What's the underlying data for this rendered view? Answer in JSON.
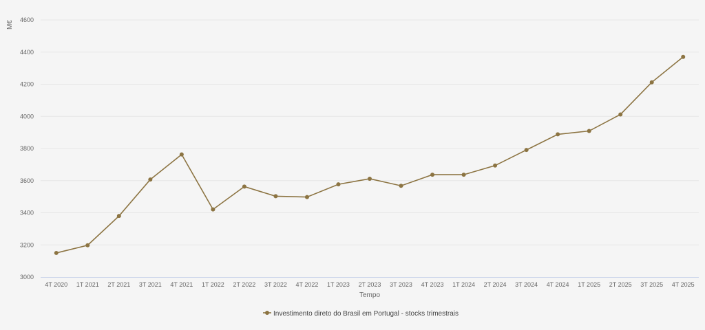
{
  "chart_data": {
    "type": "line",
    "xlabel": "Tempo",
    "ylabel": "M€",
    "ylim": [
      3000,
      4600
    ],
    "yticks": [
      3000,
      3200,
      3400,
      3600,
      3800,
      4000,
      4200,
      4400,
      4600
    ],
    "grid": true,
    "legend_position": "bottom",
    "categories": [
      "4T 2020",
      "1T 2021",
      "2T 2021",
      "3T 2021",
      "4T 2021",
      "1T 2022",
      "2T 2022",
      "3T 2022",
      "4T 2022",
      "1T 2023",
      "2T 2023",
      "3T 2023",
      "4T 2023",
      "1T 2024",
      "2T 2024",
      "3T 2024",
      "4T 2024",
      "1T 2025",
      "2T 2025",
      "3T 2025",
      "4T 2025"
    ],
    "series": [
      {
        "name": "Investimento direto do Brasil em Portugal - stocks trimestrais",
        "color": "#8c7442",
        "values": [
          3150,
          3198,
          3380,
          3607,
          3763,
          3421,
          3563,
          3503,
          3498,
          3577,
          3612,
          3568,
          3637,
          3637,
          3694,
          3791,
          3888,
          3909,
          4012,
          4212,
          4370
        ]
      }
    ]
  }
}
